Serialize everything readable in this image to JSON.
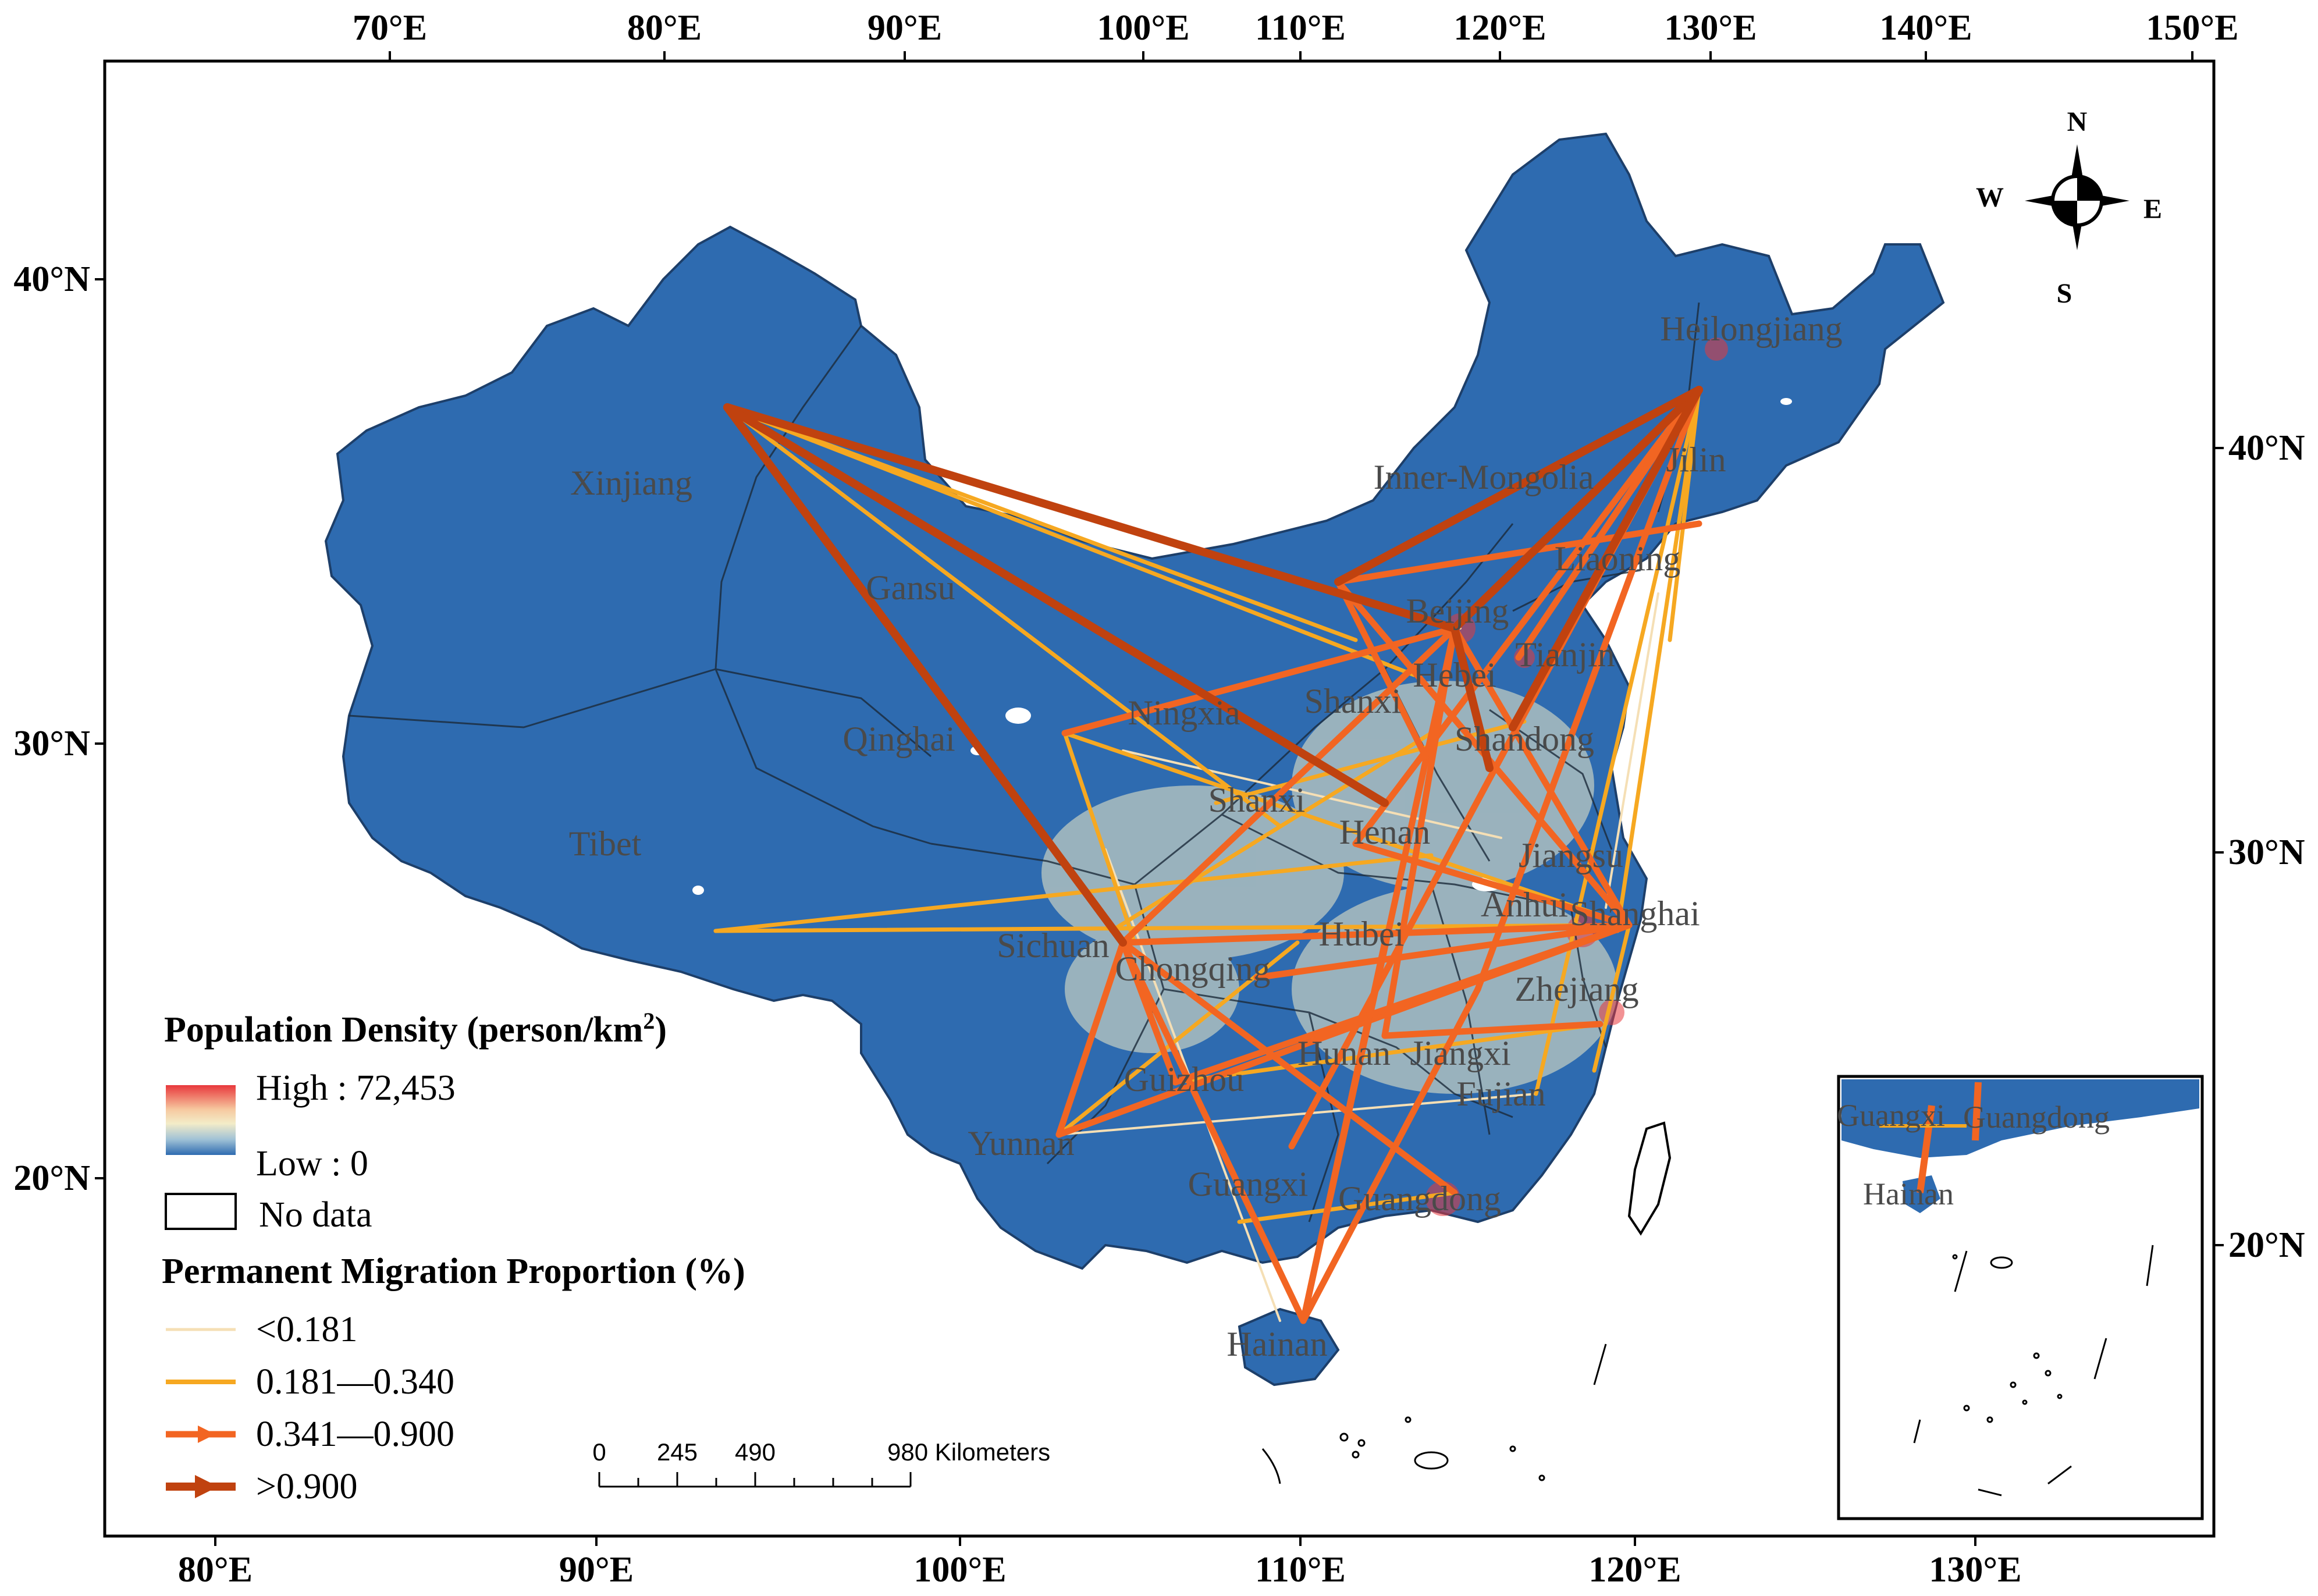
{
  "map": {
    "top_longitude_labels": [
      "70°E",
      "80°E",
      "90°E",
      "100°E",
      "110°E",
      "120°E",
      "130°E",
      "140°E",
      "150°E"
    ],
    "bottom_longitude_labels": [
      "80°E",
      "90°E",
      "100°E",
      "110°E",
      "120°E",
      "130°E"
    ],
    "left_latitude_labels": [
      "40°N",
      "30°N",
      "20°N"
    ],
    "right_latitude_labels": [
      "40°N",
      "30°N",
      "20°N"
    ],
    "province_labels": [
      "Heilongjiang",
      "Xinjiang",
      "Inner-Mongolia",
      "Jilin",
      "Liaoning",
      "Gansu",
      "Beijing",
      "Tianjin",
      "Hebei",
      "Shanxi",
      "Ningxia",
      "Qinghai",
      "Shandong",
      "Shanxi",
      "Henan",
      "Tibet",
      "Jiangsu",
      "Anhui",
      "Shanghai",
      "Sichuan",
      "Hubei",
      "Chongqing",
      "Zhejiang",
      "Hunan",
      "Jiangxi",
      "Guizhou",
      "Fujian",
      "Yunnan",
      "Guangxi",
      "Guangdong",
      "Hainan"
    ],
    "inset_labels": [
      "Guangxi",
      "Guangdong",
      "Hainan"
    ],
    "colors": {
      "density_base": "#2e6bb0",
      "density_high": "#e8383c",
      "density_mid": "#f3ecc8",
      "flow_lt_0181": "#f5dfb5",
      "flow_0181_0340": "#f6a821",
      "flow_0341_0900": "#f26522",
      "flow_gt_0900": "#c0420f"
    }
  },
  "compass": {
    "n": "N",
    "s": "S",
    "e": "E",
    "w": "W"
  },
  "legend": {
    "density_title": "Population Density (person/km",
    "density_title_sup": "2",
    "density_title_end": ")",
    "high": "High : 72,453",
    "low": "Low : 0",
    "nodata": "No data",
    "migration_title": "Permanent Migration Proportion (%)",
    "classes": [
      "<0.181",
      "0.181—0.340",
      "0.341—0.900",
      ">0.900"
    ]
  },
  "scale": {
    "labels": [
      "0",
      "245",
      "490",
      "980 Kilometers"
    ]
  }
}
